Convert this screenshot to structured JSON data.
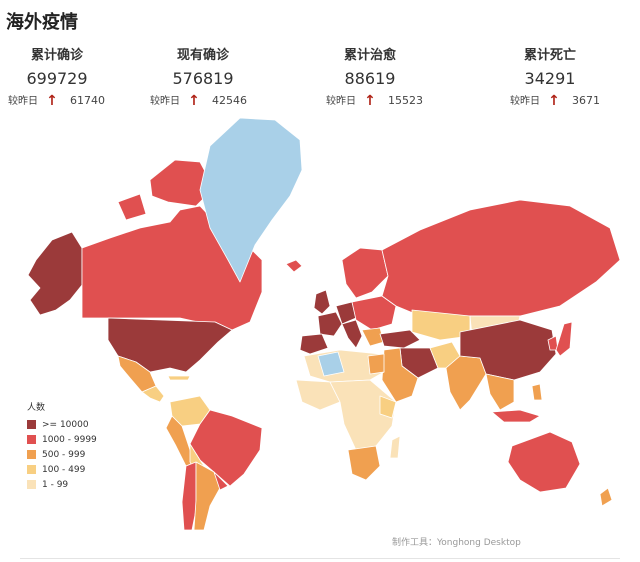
{
  "title": "海外疫情",
  "stats": [
    {
      "label": "累计确诊",
      "value": "699729",
      "delta_label": "较昨日",
      "delta": "61740"
    },
    {
      "label": "现有确诊",
      "value": "576819",
      "delta_label": "较昨日",
      "delta": "42546"
    },
    {
      "label": "累计治愈",
      "value": "88619",
      "delta_label": "较昨日",
      "delta": "15523"
    },
    {
      "label": "累计死亡",
      "value": "34291",
      "delta_label": "较昨日",
      "delta": "3671"
    }
  ],
  "legend": {
    "title": "人数",
    "items": [
      {
        "label": ">= 10000",
        "color": "#9b3a3a"
      },
      {
        "label": "1000 - 9999",
        "color": "#e05050"
      },
      {
        "label": "500 - 999",
        "color": "#f0a050"
      },
      {
        "label": "100 - 499",
        "color": "#f8cf82"
      },
      {
        "label": "1 - 99",
        "color": "#fae2b8"
      }
    ],
    "no_data_color": "#a9d0e8"
  },
  "credit": "制作工具：Yonghong Desktop",
  "icons": {
    "delta_arrow": "arrow-up-icon"
  }
}
